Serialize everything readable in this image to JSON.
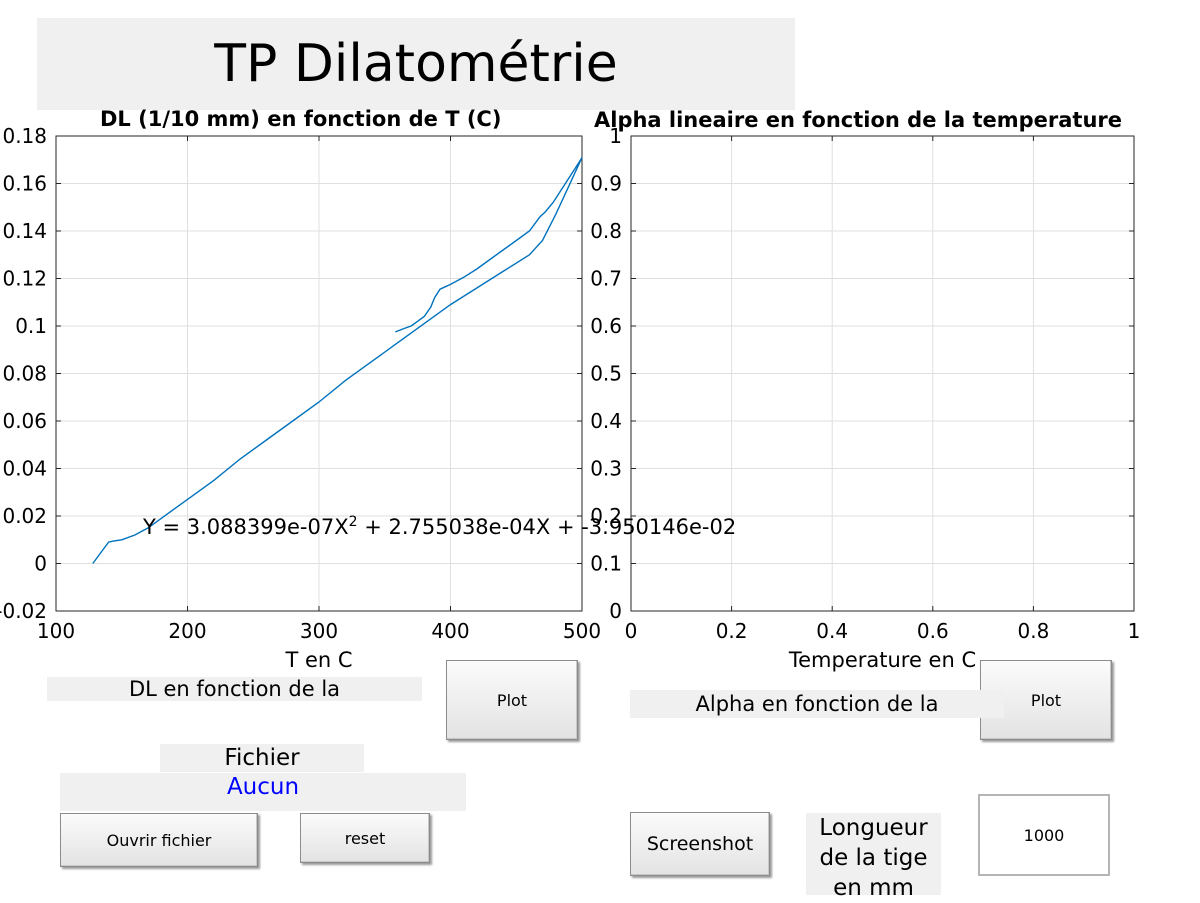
{
  "window": {
    "title": "TP Dilatométrie"
  },
  "left_axes": {
    "title": "DL (1/10 mm) en fonction de T (C)"
  },
  "right_axes": {
    "title": "Alpha lineaire en fonction de la temperature"
  },
  "fit_equation": {
    "prefix": "Y = 3.088399e-07X",
    "exponent": "2",
    "suffix": " + 2.755038e-04X + -3.950146e-02"
  },
  "controls": {
    "dl_label": "DL en fonction de la",
    "plot_left_label": "Plot",
    "alpha_label": "Alpha en fonction de la",
    "plot_right_label": "Plot",
    "file_label": "Fichier",
    "file_name": "Aucun",
    "open_file_label": "Ouvrir fichier",
    "reset_label": "reset",
    "screenshot_label": "Screenshot",
    "length_label_line1": "Longueur",
    "length_label_line2": "de la tige",
    "length_label_line3": "en mm",
    "length_value": "1000"
  },
  "colors": {
    "panel_bg": "#f0f0f0",
    "plot_line": "#0072bd",
    "file_name_text": "#0000ff",
    "grid": "#dfdfdf"
  },
  "chart_data": [
    {
      "type": "line",
      "title": "DL (1/10 mm) en fonction de T (C)",
      "xlabel": "T en C",
      "ylabel": "",
      "xlim": [
        100,
        500
      ],
      "ylim": [
        -0.02,
        0.18
      ],
      "xticks": [
        100,
        200,
        300,
        400,
        500
      ],
      "yticks": [
        -0.02,
        0,
        0.02,
        0.04,
        0.06,
        0.08,
        0.1,
        0.12,
        0.14,
        0.16,
        0.18
      ],
      "grid": true,
      "series": [
        {
          "x": [
            128,
            140,
            144,
            150,
            160,
            170,
            180,
            200,
            220,
            240,
            260,
            280,
            300,
            320,
            340,
            360,
            380,
            400,
            420,
            440,
            460,
            470,
            480,
            490,
            500,
            499,
            492,
            485,
            478,
            472,
            468,
            464,
            460,
            450,
            440,
            430,
            420,
            410,
            400,
            396,
            392,
            388,
            385,
            380,
            375,
            370,
            365,
            358
          ],
          "y": [
            0.0,
            0.009,
            0.0095,
            0.01,
            0.012,
            0.015,
            0.019,
            0.027,
            0.035,
            0.044,
            0.052,
            0.06,
            0.068,
            0.077,
            0.085,
            0.093,
            0.101,
            0.109,
            0.116,
            0.123,
            0.13,
            0.136,
            0.147,
            0.159,
            0.171,
            0.17,
            0.164,
            0.158,
            0.152,
            0.148,
            0.146,
            0.143,
            0.14,
            0.136,
            0.132,
            0.128,
            0.124,
            0.1205,
            0.1175,
            0.1165,
            0.1155,
            0.112,
            0.108,
            0.104,
            0.102,
            0.1,
            0.099,
            0.0975
          ]
        }
      ],
      "annotations": [
        "Y = 3.088399e-07X^2 + 2.755038e-04X + -3.950146e-02"
      ]
    },
    {
      "type": "line",
      "title": "Alpha lineaire en fonction de la temperature",
      "xlabel": "Temperature en C",
      "ylabel": "",
      "xlim": [
        0,
        1
      ],
      "ylim": [
        0,
        1
      ],
      "xticks": [
        0,
        0.2,
        0.4,
        0.6,
        0.8,
        1
      ],
      "yticks": [
        0,
        0.1,
        0.2,
        0.3,
        0.4,
        0.5,
        0.6,
        0.7,
        0.8,
        0.9,
        1
      ],
      "grid": true,
      "series": []
    }
  ]
}
